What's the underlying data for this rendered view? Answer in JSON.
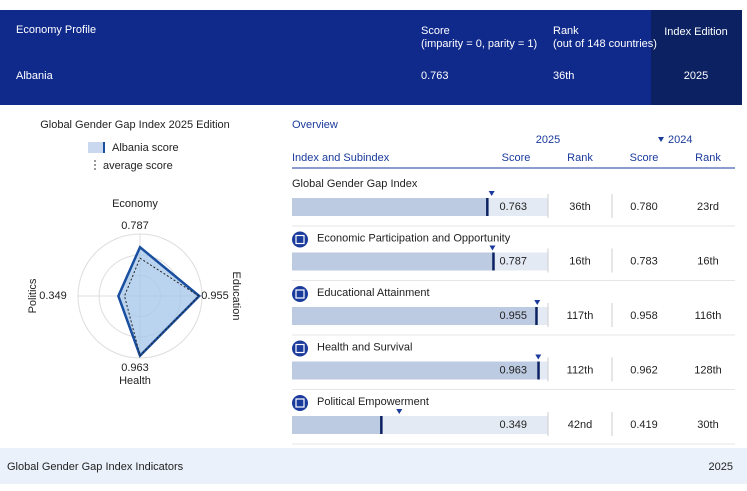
{
  "header": {
    "profile_label": "Economy Profile",
    "economy": "Albania",
    "score_label": "Score",
    "score_note": "(imparity = 0, parity = 1)",
    "score": 0.763,
    "rank_label": "Rank",
    "rank_note": "(out of 148 countries)",
    "rank": "36th",
    "edition_label": "Index Edition",
    "edition": "2025"
  },
  "radar": {
    "title": "Global Gender Gap Index 2025 Edition",
    "legend": [
      "Albania score",
      "average score"
    ],
    "axes": [
      {
        "name": "Economy",
        "value": 0.787
      },
      {
        "name": "Education",
        "value": 0.955
      },
      {
        "name": "Health",
        "value": 0.963
      },
      {
        "name": "Politics",
        "value": 0.349
      }
    ],
    "averages": [
      0.61,
      0.95,
      0.96,
      0.25
    ]
  },
  "overview": {
    "title": "Overview",
    "year_current": "2025",
    "year_previous": "2024",
    "columns": [
      "Index and Subindex",
      "Score",
      "Rank",
      "Score",
      "Rank"
    ],
    "rows": [
      {
        "name": "Global Gender Gap Index",
        "score": 0.763,
        "rank": "36th",
        "prev_score": {
          "value": 0.78,
          "label": "0.780"
        },
        "prev_rank": "23rd"
      },
      {
        "name": "Economic Participation and Opportunity",
        "score": 0.787,
        "rank": "16th",
        "prev_score": 0.783,
        "prev_rank": "16th"
      },
      {
        "name": "Educational Attainment",
        "score": 0.955,
        "rank": "117th",
        "prev_score": 0.958,
        "prev_rank": "116th"
      },
      {
        "name": "Health and Survival",
        "score": 0.963,
        "rank": "112th",
        "prev_score": 0.962,
        "prev_rank": "128th"
      },
      {
        "name": "Political Empowerment",
        "score": 0.349,
        "rank": "42nd",
        "prev_score": 0.419,
        "prev_rank": "30th"
      }
    ]
  },
  "footer": {
    "title": "Global Gender Gap Index Indicators",
    "year": "2025"
  }
}
